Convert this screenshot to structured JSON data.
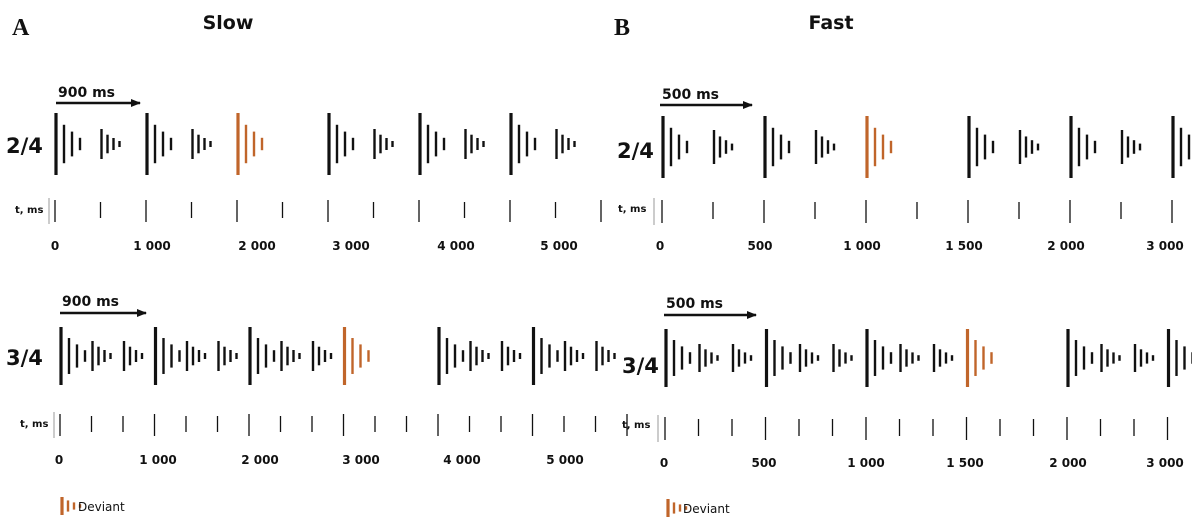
{
  "colors": {
    "standard": "#111111",
    "deviant": "#c0652a"
  },
  "legend": {
    "label": "Deviant",
    "icon": "deviant-sound-icon"
  },
  "panels": [
    {
      "letter": "A",
      "title": "Slow",
      "rows": [
        {
          "meter": "2/4",
          "period_label": "900 ms",
          "period_ms": 900,
          "beats_per_bar": 2,
          "n_bars": 6,
          "deviant_index": 2,
          "axis_label": "t, ms",
          "axis_ticks": [
            "0",
            "1 000",
            "2 000",
            "3 000",
            "4 000",
            "5 000"
          ]
        },
        {
          "meter": "3/4",
          "period_label": "900 ms",
          "period_ms": 900,
          "beats_per_bar": 3,
          "n_bars": 6,
          "deviant_index": 3,
          "axis_label": "t, ms",
          "axis_ticks": [
            "0",
            "1 000",
            "2 000",
            "3 000",
            "4 000",
            "5 000"
          ]
        }
      ]
    },
    {
      "letter": "B",
      "title": "Fast",
      "rows": [
        {
          "meter": "2/4",
          "period_label": "500 ms",
          "period_ms": 500,
          "beats_per_bar": 2,
          "n_bars": 6,
          "deviant_index": 2,
          "axis_label": "t, ms",
          "axis_ticks": [
            "0",
            "500",
            "1 000",
            "1 500",
            "2 000",
            "3 000"
          ]
        },
        {
          "meter": "3/4",
          "period_label": "500 ms",
          "period_ms": 500,
          "beats_per_bar": 3,
          "n_bars": 6,
          "deviant_index": 3,
          "axis_label": "t, ms",
          "axis_ticks": [
            "0",
            "500",
            "1 000",
            "1 500",
            "2 000",
            "3 000"
          ]
        }
      ]
    }
  ]
}
